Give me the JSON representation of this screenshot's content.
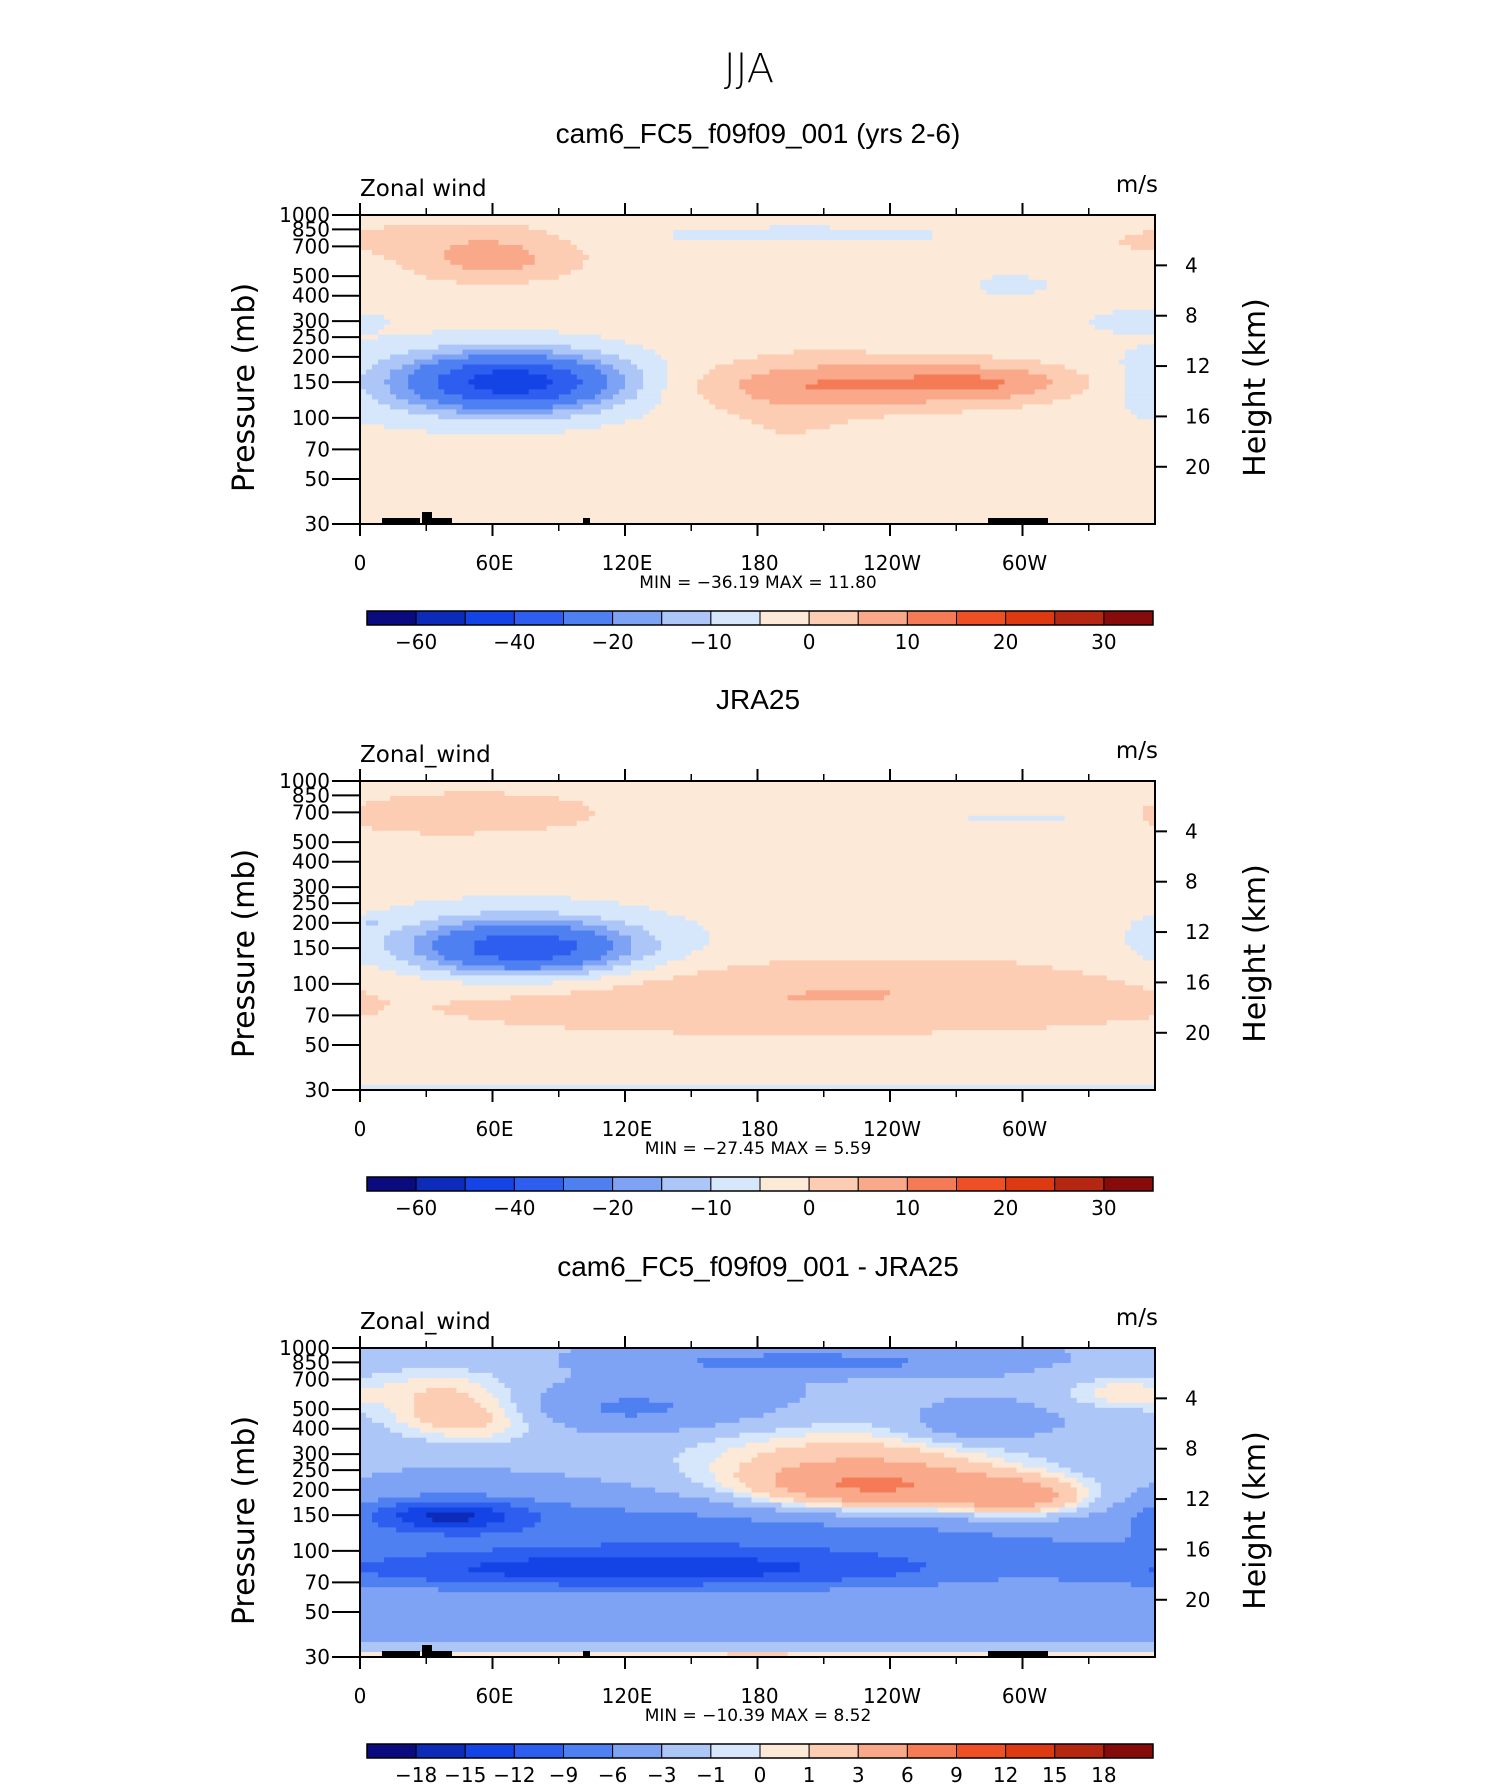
{
  "figure_title": "JJA",
  "colors": {
    "wind_palette": [
      "#0b0b80",
      "#0c2bb8",
      "#1544e6",
      "#2d5ef0",
      "#4f80f2",
      "#7ea3f5",
      "#adc6f8",
      "#d6e6fb",
      "#fde9d7",
      "#fccdb3",
      "#f9a88a",
      "#f47b55",
      "#ef4f25",
      "#dd3a12",
      "#b52710",
      "#860b0b"
    ],
    "diff_palette": [
      "#0b0b80",
      "#0c2bb8",
      "#1544e6",
      "#2d5ef0",
      "#4f80f2",
      "#7ea3f5",
      "#adc6f8",
      "#d6e6fb",
      "#fde9d7",
      "#fccdb3",
      "#f9a88a",
      "#f47b55",
      "#ef4f25",
      "#dd3a12",
      "#b52710",
      "#860b0b"
    ]
  },
  "chart_data": [
    {
      "type": "heatmap",
      "title": "cam6_FC5_f09f09_001 (yrs 2-6)",
      "left_label": "Zonal wind",
      "units": "m/s",
      "ylabel": "Pressure (mb)",
      "ylabel_right": "Height (km)",
      "x_ticks": [
        "0",
        "60E",
        "120E",
        "180",
        "120W",
        "60W"
      ],
      "y_ticks": [
        "30",
        "50",
        "70",
        "100",
        "150",
        "200",
        "250",
        "300",
        "400",
        "500",
        "700",
        "850",
        "1000"
      ],
      "y_ticks_right": [
        "20",
        "16",
        "12",
        "8",
        "4"
      ],
      "stats": "MIN = −36.19 MAX = 11.80",
      "colorbar_labels": [
        "−60",
        "−40",
        "−20",
        "−10",
        "0",
        "10",
        "20",
        "30"
      ],
      "palette": "wind_palette",
      "levels": [
        -70,
        -60,
        -50,
        -40,
        -30,
        -20,
        -15,
        -10,
        -5,
        0,
        5,
        10,
        15,
        20,
        25,
        30,
        35
      ],
      "xlim": [
        0,
        360
      ],
      "ylim": [
        1000,
        30
      ],
      "min": -36.19,
      "max": 11.8,
      "features": [
        {
          "lon": 70,
          "p": 150,
          "value": -36,
          "lon_radius": 45,
          "logp_radius": 0.3
        },
        {
          "lon": 52,
          "p": 150,
          "value": -8,
          "lon_radius": 70,
          "logp_radius": 0.45
        },
        {
          "lon": 60,
          "p": 600,
          "value": 10,
          "lon_radius": 38,
          "logp_radius": 0.25
        },
        {
          "lon": 40,
          "p": 800,
          "value": 4,
          "lon_radius": 50,
          "logp_radius": 0.2
        },
        {
          "lon": 225,
          "p": 145,
          "value": 11.8,
          "lon_radius": 75,
          "logp_radius": 0.28
        },
        {
          "lon": 290,
          "p": 150,
          "value": 8,
          "lon_radius": 45,
          "logp_radius": 0.22
        },
        {
          "lon": 195,
          "p": 100,
          "value": 3,
          "lon_radius": 35,
          "logp_radius": 0.7
        },
        {
          "lon": 230,
          "p": 280,
          "value": 2,
          "lon_radius": 55,
          "logp_radius": 0.25
        },
        {
          "lon": 345,
          "p": 700,
          "value": 2,
          "lon_radius": 25,
          "logp_radius": 0.25
        },
        {
          "lon": 200,
          "p": 800,
          "value": -6,
          "lon_radius": 60,
          "logp_radius": 0.08
        },
        {
          "lon": 295,
          "p": 450,
          "value": -6,
          "lon_radius": 15,
          "logp_radius": 0.1
        },
        {
          "lon": 350,
          "p": 300,
          "value": -5,
          "lon_radius": 20,
          "logp_radius": 0.12
        },
        {
          "lon": 170,
          "p": 40,
          "value": -2,
          "lon_radius": 180,
          "logp_radius": 0.12
        }
      ],
      "base_value": -3,
      "topography": true
    },
    {
      "type": "heatmap",
      "title": "JRA25",
      "left_label": "Zonal_wind",
      "units": "m/s",
      "ylabel": "Pressure (mb)",
      "ylabel_right": "Height (km)",
      "x_ticks": [
        "0",
        "60E",
        "120E",
        "180",
        "120W",
        "60W"
      ],
      "y_ticks": [
        "30",
        "50",
        "70",
        "100",
        "150",
        "200",
        "250",
        "300",
        "400",
        "500",
        "700",
        "850",
        "1000"
      ],
      "y_ticks_right": [
        "20",
        "16",
        "12",
        "8",
        "4"
      ],
      "stats": "MIN = −27.45 MAX = 5.59",
      "colorbar_labels": [
        "−60",
        "−40",
        "−20",
        "−10",
        "0",
        "10",
        "20",
        "30"
      ],
      "palette": "wind_palette",
      "levels": [
        -70,
        -60,
        -50,
        -40,
        -30,
        -20,
        -15,
        -10,
        -5,
        0,
        5,
        10,
        15,
        20,
        25,
        30,
        35
      ],
      "xlim": [
        0,
        360
      ],
      "ylim": [
        1000,
        30
      ],
      "min": -27.45,
      "max": 5.59,
      "features": [
        {
          "lon": 75,
          "p": 150,
          "value": -27,
          "lon_radius": 45,
          "logp_radius": 0.28
        },
        {
          "lon": 70,
          "p": 160,
          "value": -8,
          "lon_radius": 70,
          "logp_radius": 0.42
        },
        {
          "lon": 200,
          "p": 80,
          "value": 7,
          "lon_radius": 190,
          "logp_radius": 0.38
        },
        {
          "lon": 240,
          "p": 110,
          "value": 3,
          "lon_radius": 110,
          "logp_radius": 0.3
        },
        {
          "lon": 300,
          "p": 150,
          "value": 2,
          "lon_radius": 30,
          "logp_radius": 0.1
        },
        {
          "lon": 60,
          "p": 700,
          "value": 6,
          "lon_radius": 55,
          "logp_radius": 0.25
        },
        {
          "lon": 10,
          "p": 650,
          "value": 2,
          "lon_radius": 45,
          "logp_radius": 0.3
        },
        {
          "lon": 175,
          "p": 30,
          "value": -4,
          "lon_radius": 500,
          "logp_radius": 0.05
        },
        {
          "lon": 300,
          "p": 650,
          "value": -4,
          "lon_radius": 30,
          "logp_radius": 0.05
        },
        {
          "lon": 5,
          "p": 200,
          "value": -4,
          "lon_radius": 8,
          "logp_radius": 0.04
        }
      ],
      "base_value": -3,
      "topography": false
    },
    {
      "type": "heatmap",
      "title": "cam6_FC5_f09f09_001 - JRA25",
      "left_label": "Zonal_wind",
      "units": "m/s",
      "ylabel": "Pressure (mb)",
      "ylabel_right": "Height (km)",
      "x_ticks": [
        "0",
        "60E",
        "120E",
        "180",
        "120W",
        "60W"
      ],
      "y_ticks": [
        "30",
        "50",
        "70",
        "100",
        "150",
        "200",
        "250",
        "300",
        "400",
        "500",
        "700",
        "850",
        "1000"
      ],
      "y_ticks_right": [
        "20",
        "16",
        "12",
        "8",
        "4"
      ],
      "stats": "MIN = −10.39 MAX = 8.52",
      "colorbar_labels": [
        "−18",
        "−15",
        "−12",
        "−9",
        "−6",
        "−3",
        "−1",
        "0",
        "1",
        "3",
        "6",
        "9",
        "12",
        "15",
        "18"
      ],
      "palette": "diff_palette",
      "levels": [
        -21,
        -18,
        -15,
        -12,
        -9,
        -6,
        -3,
        -1,
        0,
        1,
        3,
        6,
        9,
        12,
        15,
        18,
        21
      ],
      "xlim": [
        0,
        360
      ],
      "ylim": [
        1000,
        30
      ],
      "min": -10.39,
      "max": 8.52,
      "features": [
        {
          "lon": 120,
          "p": 80,
          "value": -9,
          "lon_radius": 150,
          "logp_radius": 0.22
        },
        {
          "lon": 40,
          "p": 150,
          "value": -10,
          "lon_radius": 35,
          "logp_radius": 0.18
        },
        {
          "lon": 160,
          "p": 120,
          "value": -5,
          "lon_radius": 220,
          "logp_radius": 0.45
        },
        {
          "lon": 230,
          "p": 200,
          "value": 8.5,
          "lon_radius": 60,
          "logp_radius": 0.3
        },
        {
          "lon": 300,
          "p": 180,
          "value": 7,
          "lon_radius": 35,
          "logp_radius": 0.25
        },
        {
          "lon": 220,
          "p": 300,
          "value": 4,
          "lon_radius": 90,
          "logp_radius": 0.45
        },
        {
          "lon": 50,
          "p": 450,
          "value": 5,
          "lon_radius": 40,
          "logp_radius": 0.3
        },
        {
          "lon": 35,
          "p": 650,
          "value": 3,
          "lon_radius": 40,
          "logp_radius": 0.3
        },
        {
          "lon": 340,
          "p": 600,
          "value": 3,
          "lon_radius": 25,
          "logp_radius": 0.2
        },
        {
          "lon": 180,
          "p": 30,
          "value": 5,
          "lon_radius": 500,
          "logp_radius": 0.06
        },
        {
          "lon": 200,
          "p": 850,
          "value": -6,
          "lon_radius": 60,
          "logp_radius": 0.1
        },
        {
          "lon": 120,
          "p": 500,
          "value": -4,
          "lon_radius": 60,
          "logp_radius": 0.25
        },
        {
          "lon": 280,
          "p": 420,
          "value": -4,
          "lon_radius": 30,
          "logp_radius": 0.2
        }
      ],
      "base_value": -3,
      "topography": true
    }
  ]
}
